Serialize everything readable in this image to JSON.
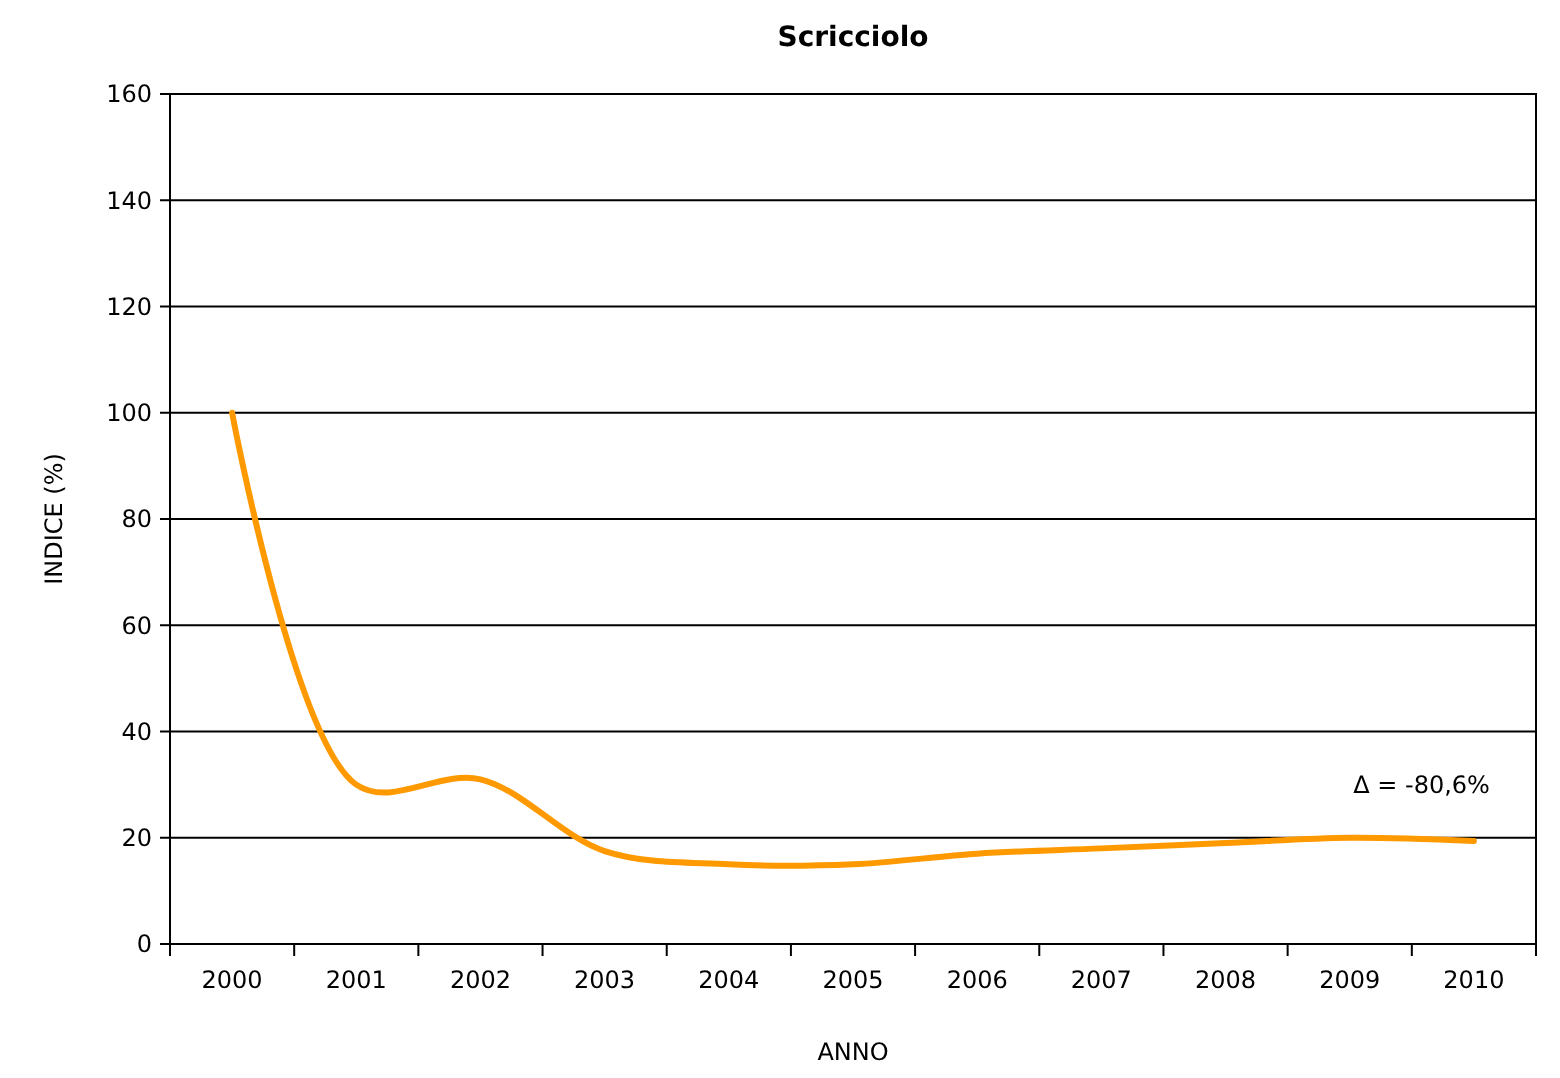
{
  "chart_data": {
    "type": "line",
    "title": "Scricciolo",
    "xlabel": "ANNO",
    "ylabel": "INDICE (%)",
    "categories": [
      "2000",
      "2001",
      "2002",
      "2003",
      "2004",
      "2005",
      "2006",
      "2007",
      "2008",
      "2009",
      "2010"
    ],
    "series": [
      {
        "color": "#ff9900",
        "values": [
          100,
          30,
          31,
          17.5,
          15,
          15,
          17,
          18,
          19,
          20,
          19.4
        ]
      }
    ],
    "ylim": [
      0,
      160
    ],
    "yticks": [
      0,
      20,
      40,
      60,
      80,
      100,
      120,
      140,
      160
    ],
    "grid": "y",
    "marker": "none",
    "line_style": "solid",
    "annotations": [
      "Δ = -80,6%"
    ]
  }
}
